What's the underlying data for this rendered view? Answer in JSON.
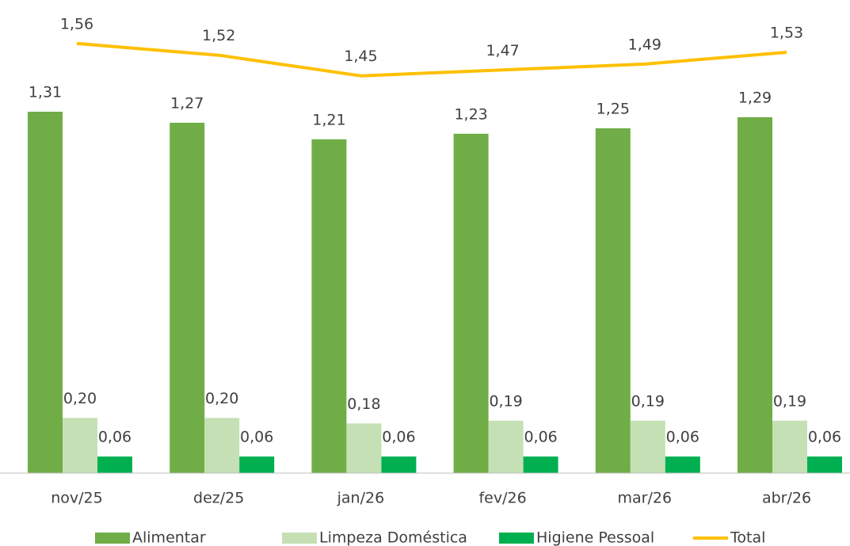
{
  "chart_data": {
    "type": "bar",
    "categories": [
      "nov/25",
      "dez/25",
      "jan/26",
      "fev/26",
      "mar/26",
      "abr/26"
    ],
    "ylim": [
      0,
      1.6
    ],
    "y2lim": [
      0.1,
      1.6
    ],
    "series": [
      {
        "name": "Alimentar",
        "color": "#70ad47",
        "values": [
          1.31,
          1.27,
          1.21,
          1.23,
          1.25,
          1.29
        ],
        "value_labels": [
          "1,31",
          "1,27",
          "1,21",
          "1,23",
          "1,25",
          "1,29"
        ]
      },
      {
        "name": "Limpeza Doméstica",
        "color": "#c5e0b4",
        "values": [
          0.2,
          0.2,
          0.18,
          0.19,
          0.19,
          0.19
        ],
        "value_labels": [
          "0,20",
          "0,20",
          "0,18",
          "0,19",
          "0,19",
          "0,19"
        ]
      },
      {
        "name": "Higiene Pessoal",
        "color": "#00b050",
        "values": [
          0.06,
          0.06,
          0.06,
          0.06,
          0.06,
          0.06
        ],
        "value_labels": [
          "0,06",
          "0,06",
          "0,06",
          "0,06",
          "0,06",
          "0,06"
        ]
      },
      {
        "name": "Total",
        "type": "line",
        "axis": "y2",
        "color": "#ffc000",
        "values": [
          1.56,
          1.52,
          1.45,
          1.47,
          1.49,
          1.53
        ],
        "value_labels": [
          "1,56",
          "1,52",
          "1,45",
          "1,47",
          "1,49",
          "1,53"
        ]
      }
    ]
  }
}
